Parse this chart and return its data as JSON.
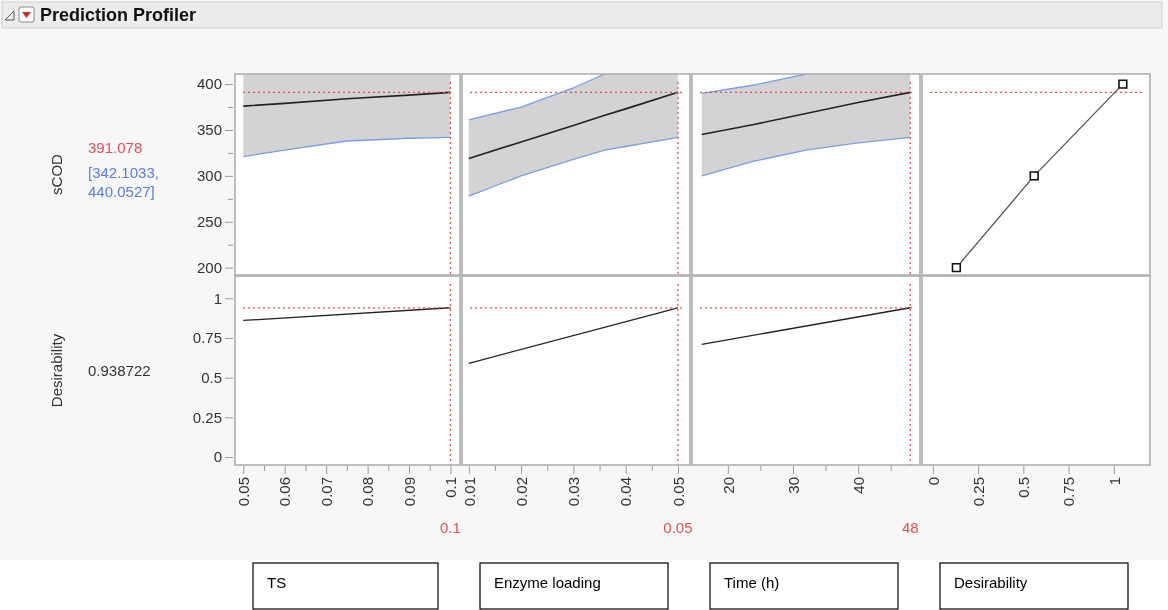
{
  "chart_data": [
    {
      "type": "line",
      "title": "Prediction Profiler",
      "ylabel": "sCOD",
      "xlim": [
        0.048,
        0.1023
      ],
      "ylim": [
        192,
        411
      ],
      "yticks": [
        200,
        {
          "value": 225,
          "label": null
        },
        250,
        {
          "value": 275,
          "label": null
        },
        300,
        {
          "value": 325,
          "label": null
        },
        350,
        {
          "value": 375,
          "label": null
        },
        400
      ],
      "tick_labels": "y",
      "series": [
        {
          "color": "#222222",
          "x": [
            0.05,
            0.06,
            0.075,
            0.09,
            0.1
          ],
          "values": [
            376,
            379,
            384,
            388,
            391
          ],
          "lower": [
            321,
            328,
            338,
            341,
            342
          ],
          "upper": [
            411,
            411,
            411,
            411,
            411
          ]
        },
        {
          "color": "#7a9ee8",
          "x": [
            0.05,
            0.06,
            0.075,
            0.09,
            0.1
          ],
          "values": [
            321,
            328,
            338,
            341,
            342
          ]
        }
      ],
      "ref_lines": [
        {
          "axis": "y",
          "value": 391.078,
          "label": "391.078",
          "color": "#e0505a",
          "line_style": "dotted"
        },
        {
          "axis": "x",
          "value": 0.1,
          "label": "0.1",
          "color": "#e0505a",
          "line_style": "dotted"
        }
      ],
      "annotations": [
        "[342.1033, 440.0527]"
      ]
    },
    {
      "type": "line",
      "xlim": [
        0.0087,
        0.0523
      ],
      "ylim": [
        192,
        411
      ],
      "tick_labels": false,
      "series": [
        {
          "color": "#222222",
          "x": [
            0.01,
            0.02,
            0.03,
            0.036,
            0.04,
            0.05
          ],
          "values": [
            319,
            337,
            355,
            366,
            373,
            391
          ],
          "lower": [
            278,
            300,
            318,
            328,
            332,
            342
          ],
          "upper": [
            361,
            375,
            396,
            411,
            411,
            411
          ]
        },
        {
          "color": "#7a9ee8",
          "x": [
            0.01,
            0.02,
            0.03,
            0.036,
            0.04,
            0.05
          ],
          "values": [
            278,
            300,
            318,
            328,
            332,
            342
          ]
        },
        {
          "color": "#7a9ee8",
          "x": [
            0.01,
            0.02,
            0.03,
            0.036
          ],
          "values": [
            361,
            375,
            396,
            411
          ]
        }
      ],
      "ref_lines": [
        {
          "axis": "y",
          "value": 391.078,
          "color": "#e0505a",
          "line_style": "dotted"
        },
        {
          "axis": "x",
          "value": 0.05,
          "label": "0.05",
          "color": "#e0505a",
          "line_style": "dotted"
        }
      ]
    },
    {
      "type": "line",
      "xlim": [
        14.5,
        49.5
      ],
      "ylim": [
        192,
        411
      ],
      "tick_labels": false,
      "series": [
        {
          "color": "#222222",
          "x": [
            16,
            24,
            32,
            40,
            48
          ],
          "values": [
            345,
            356,
            368,
            380,
            391
          ],
          "lower": [
            300,
            316,
            328,
            336,
            342
          ],
          "upper": [
            390,
            399,
            411,
            411,
            411
          ]
        },
        {
          "color": "#7a9ee8",
          "x": [
            16,
            24,
            32,
            40,
            48
          ],
          "values": [
            300,
            316,
            328,
            336,
            342
          ]
        },
        {
          "color": "#7a9ee8",
          "x": [
            16,
            24,
            32
          ],
          "values": [
            390,
            399,
            411
          ]
        }
      ],
      "ref_lines": [
        {
          "axis": "y",
          "value": 391.078,
          "color": "#e0505a",
          "line_style": "dotted"
        },
        {
          "axis": "x",
          "value": 48,
          "label": "48",
          "color": "#e0505a",
          "line_style": "dotted"
        }
      ]
    },
    {
      "type": "line",
      "xlim": [
        -0.06,
        1.2
      ],
      "ylim": [
        192,
        411
      ],
      "tick_labels": false,
      "marker": "square",
      "series": [
        {
          "color": "#555555",
          "x": [
            0.13,
            0.56,
            1.05
          ],
          "values": [
            200,
            300,
            400
          ]
        }
      ],
      "ref_lines": [
        {
          "axis": "y",
          "value": 391.078,
          "color": "#e0505a",
          "line_style": "dotted"
        }
      ]
    },
    {
      "type": "line",
      "ylabel": "Desirability",
      "xlabel": "TS",
      "xlim": [
        0.048,
        0.1023
      ],
      "xticks": [
        0.05,
        {
          "value": 0.055,
          "label": null
        },
        0.06,
        {
          "value": 0.065,
          "label": null
        },
        0.07,
        {
          "value": 0.075,
          "label": null
        },
        0.08,
        {
          "value": 0.085,
          "label": null
        },
        0.09,
        {
          "value": 0.095,
          "label": null
        },
        0.1
      ],
      "ylim": [
        -0.05,
        1.14
      ],
      "yticks": [
        0,
        0.25,
        0.5,
        0.75,
        1
      ],
      "series": [
        {
          "color": "#222222",
          "x": [
            0.05,
            0.1
          ],
          "values": [
            0.86,
            0.94
          ]
        }
      ],
      "ref_lines": [
        {
          "axis": "y",
          "value": 0.938722,
          "color": "#e0505a",
          "line_style": "dotted"
        },
        {
          "axis": "x",
          "value": 0.1,
          "color": "#e0505a",
          "line_style": "dotted"
        }
      ],
      "annotations": [
        "0.938722"
      ]
    },
    {
      "type": "line",
      "xlabel": "Enzyme loading",
      "xlim": [
        0.0087,
        0.0523
      ],
      "xticks": [
        0.01,
        {
          "value": 0.015,
          "label": null
        },
        0.02,
        {
          "value": 0.025,
          "label": null
        },
        0.03,
        {
          "value": 0.035,
          "label": null
        },
        0.04,
        {
          "value": 0.045,
          "label": null
        },
        0.05
      ],
      "ylim": [
        -0.05,
        1.14
      ],
      "tick_labels": "x",
      "series": [
        {
          "color": "#222222",
          "x": [
            0.01,
            0.05
          ],
          "values": [
            0.59,
            0.94
          ]
        }
      ],
      "ref_lines": [
        {
          "axis": "y",
          "value": 0.938722,
          "color": "#e0505a",
          "line_style": "dotted"
        },
        {
          "axis": "x",
          "value": 0.05,
          "color": "#e0505a",
          "line_style": "dotted"
        }
      ]
    },
    {
      "type": "line",
      "xlabel": "Time (h)",
      "xlim": [
        14.5,
        49.5
      ],
      "xticks": [
        20,
        {
          "value": 25,
          "label": null
        },
        30,
        {
          "value": 35,
          "label": null
        },
        40,
        {
          "value": 45,
          "label": null
        }
      ],
      "ylim": [
        -0.05,
        1.14
      ],
      "tick_labels": "x",
      "series": [
        {
          "color": "#222222",
          "x": [
            16,
            48
          ],
          "values": [
            0.71,
            0.94
          ]
        }
      ],
      "ref_lines": [
        {
          "axis": "y",
          "value": 0.938722,
          "color": "#e0505a",
          "line_style": "dotted"
        },
        {
          "axis": "x",
          "value": 48,
          "color": "#e0505a",
          "line_style": "dotted"
        }
      ]
    },
    {
      "type": "line",
      "xlabel": "Desirability",
      "xlim": [
        -0.06,
        1.2
      ],
      "xticks": [
        0,
        0.25,
        0.5,
        0.75,
        1
      ],
      "ylim": [
        -0.05,
        1.14
      ],
      "tick_labels": "x"
    }
  ]
}
